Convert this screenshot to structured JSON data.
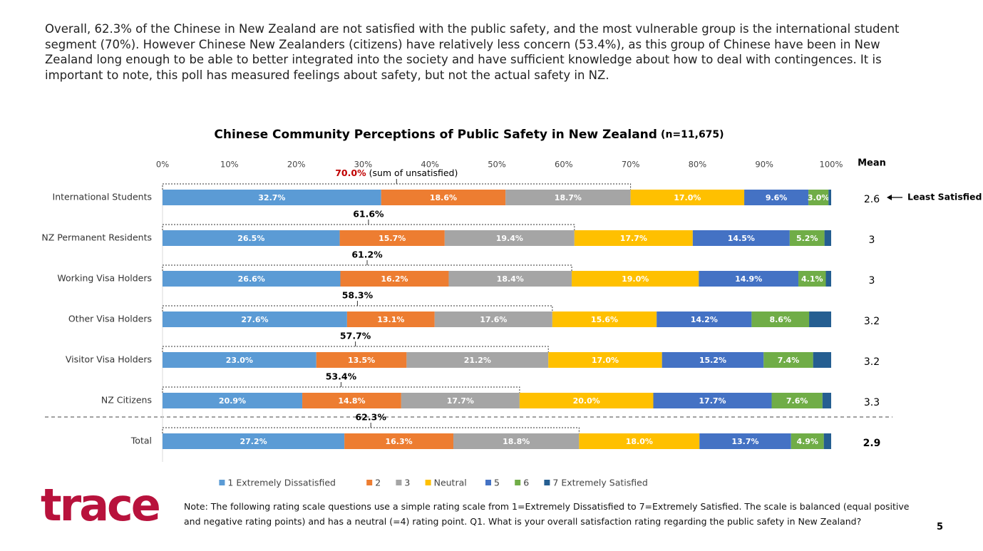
{
  "intro": "Overall, 62.3% of the Chinese in New Zealand are not satisfied with the public safety, and the most vulnerable group is the international student segment (70%). However Chinese New Zealanders (citizens) have relatively less concern (53.4%), as this group of Chinese have been in New Zealand long enough to be able to better integrated into the society and have sufficient knowledge about how to deal with contingences. It is important to note, this poll has measured feelings about safety, but not the actual safety in NZ.",
  "chart_data": {
    "type": "bar",
    "orientation": "horizontal",
    "stacked": true,
    "title": "Chinese Community Perceptions of Public Safety in New Zealand",
    "subtitle": "(n=11,675)",
    "categories": [
      "International Students",
      "NZ Permanent Residents",
      "Working Visa Holders",
      "Other Visa Holders",
      "Visitor Visa Holders",
      "NZ Citizens",
      "Total"
    ],
    "series": [
      {
        "name": "1 Extremely Dissatisfied",
        "color": "#5b9bd5",
        "values": [
          32.7,
          26.5,
          26.6,
          27.6,
          23.0,
          20.9,
          27.2
        ],
        "value_labels": [
          "32.7%",
          "26.5%",
          "26.6%",
          "27.6%",
          "23.0%",
          "20.9%",
          "27.2%"
        ]
      },
      {
        "name": "2",
        "color": "#ed7d31",
        "values": [
          18.6,
          15.7,
          16.2,
          13.1,
          13.5,
          14.8,
          16.3
        ],
        "value_labels": [
          "18.6%",
          "15.7%",
          "16.2%",
          "13.1%",
          "13.5%",
          "14.8%",
          "16.3%"
        ]
      },
      {
        "name": "3",
        "color": "#a5a5a5",
        "values": [
          18.7,
          19.4,
          18.4,
          17.6,
          21.2,
          17.7,
          18.8
        ],
        "value_labels": [
          "18.7%",
          "19.4%",
          "18.4%",
          "17.6%",
          "21.2%",
          "17.7%",
          "18.8%"
        ]
      },
      {
        "name": "Neutral",
        "color": "#ffc000",
        "values": [
          17.0,
          17.7,
          19.0,
          15.6,
          17.0,
          20.0,
          18.0
        ],
        "value_labels": [
          "17.0%",
          "17.7%",
          "19.0%",
          "15.6%",
          "17.0%",
          "20.0%",
          "18.0%"
        ]
      },
      {
        "name": "5",
        "color": "#4472c4",
        "values": [
          9.6,
          14.5,
          14.9,
          14.2,
          15.2,
          17.7,
          13.7
        ],
        "value_labels": [
          "9.6%",
          "14.5%",
          "14.9%",
          "14.2%",
          "15.2%",
          "17.7%",
          "13.7%"
        ]
      },
      {
        "name": "6",
        "color": "#70ad47",
        "values": [
          3.0,
          5.2,
          4.1,
          8.6,
          7.4,
          7.6,
          4.9
        ],
        "value_labels": [
          "3.0%",
          "5.2%",
          "4.1%",
          "8.6%",
          "7.4%",
          "7.6%",
          "4.9%"
        ]
      },
      {
        "name": "7 Extremely Satisfied",
        "color": "#255e91",
        "values": [
          0.4,
          1.0,
          0.8,
          3.3,
          2.7,
          1.3,
          1.1
        ]
      }
    ],
    "xlim": [
      0,
      100
    ],
    "xticks": [
      {
        "value": 0,
        "label": "0%"
      },
      {
        "value": 10,
        "label": "10%"
      },
      {
        "value": 20,
        "label": "20%"
      },
      {
        "value": 30,
        "label": "30%"
      },
      {
        "value": 40,
        "label": "40%"
      },
      {
        "value": 50,
        "label": "50%"
      },
      {
        "value": 60,
        "label": "60%"
      },
      {
        "value": 70,
        "label": "70%"
      },
      {
        "value": 80,
        "label": "80%"
      },
      {
        "value": 90,
        "label": "90%"
      },
      {
        "value": 100,
        "label": "100%"
      }
    ],
    "unsatisfied_sum": {
      "label": "(sum of unsatisfied)",
      "highlight_color": "#c00000",
      "values": [
        70.0,
        61.6,
        61.2,
        58.3,
        57.7,
        53.4,
        62.3
      ],
      "value_labels": [
        "70.0%",
        "61.6%",
        "61.2%",
        "58.3%",
        "57.7%",
        "53.4%",
        "62.3%"
      ]
    },
    "mean": {
      "label": "Mean",
      "values": [
        2.6,
        3,
        3,
        3.2,
        3.2,
        3.3,
        2.9
      ]
    },
    "annotation": "Least Satisfied",
    "legend": "bottom"
  },
  "note": "Note: The following rating scale questions use a simple rating scale from 1=Extremely Dissatisfied to 7=Extremely Satisfied. The scale is balanced (equal positive and negative rating points) and has a neutral (=4) rating point. Q1. What is your overall satisfaction rating regarding the public safety in New Zealand?",
  "logo": "trace",
  "page_number": "5"
}
